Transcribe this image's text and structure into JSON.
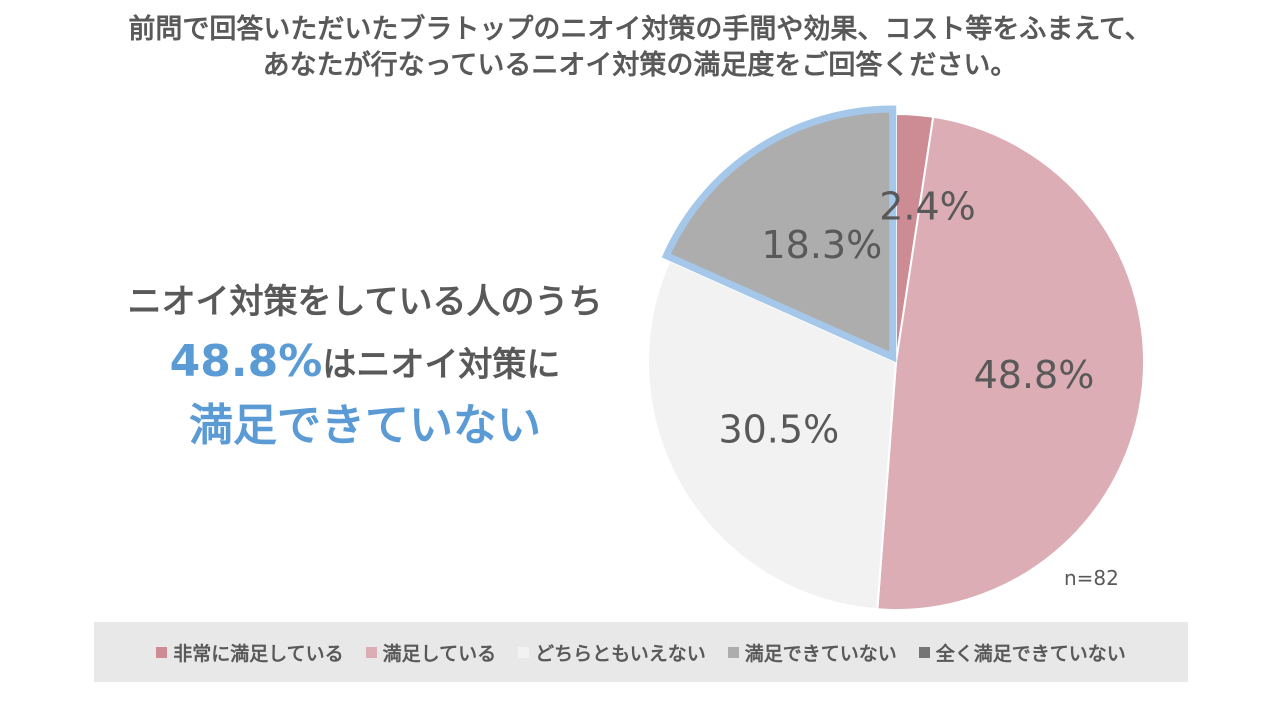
{
  "title": {
    "line1": "前問で回答いただいたブラトップのニオイ対策の手間や効果、コスト等をふまえて、",
    "line2": "あなたが行なっているニオイ対策の満足度をご回答ください。"
  },
  "callout": {
    "line1": "ニオイ対策をしている人のうち",
    "highlight_pct": "48.8%",
    "line2_rest": "はニオイ対策に",
    "line3": "満足できていない"
  },
  "sample_size": "n=82",
  "chart_data": {
    "type": "pie",
    "categories": [
      "非常に満足している",
      "満足している",
      "どちらともいえない",
      "満足できていない",
      "全く満足できていない"
    ],
    "values": [
      2.4,
      48.8,
      30.5,
      18.3,
      0
    ],
    "value_labels": [
      "2.4%",
      "48.8%",
      "30.5%",
      "18.3%",
      ""
    ],
    "colors": [
      "#cd8c94",
      "#dcadb4",
      "#f2f2f2",
      "#adadad",
      "#757575"
    ],
    "highlight": {
      "categories": [
        "満足できていない",
        "全く満足できていない"
      ],
      "outline_color": "#a5c8ea"
    },
    "legend_position": "bottom"
  }
}
